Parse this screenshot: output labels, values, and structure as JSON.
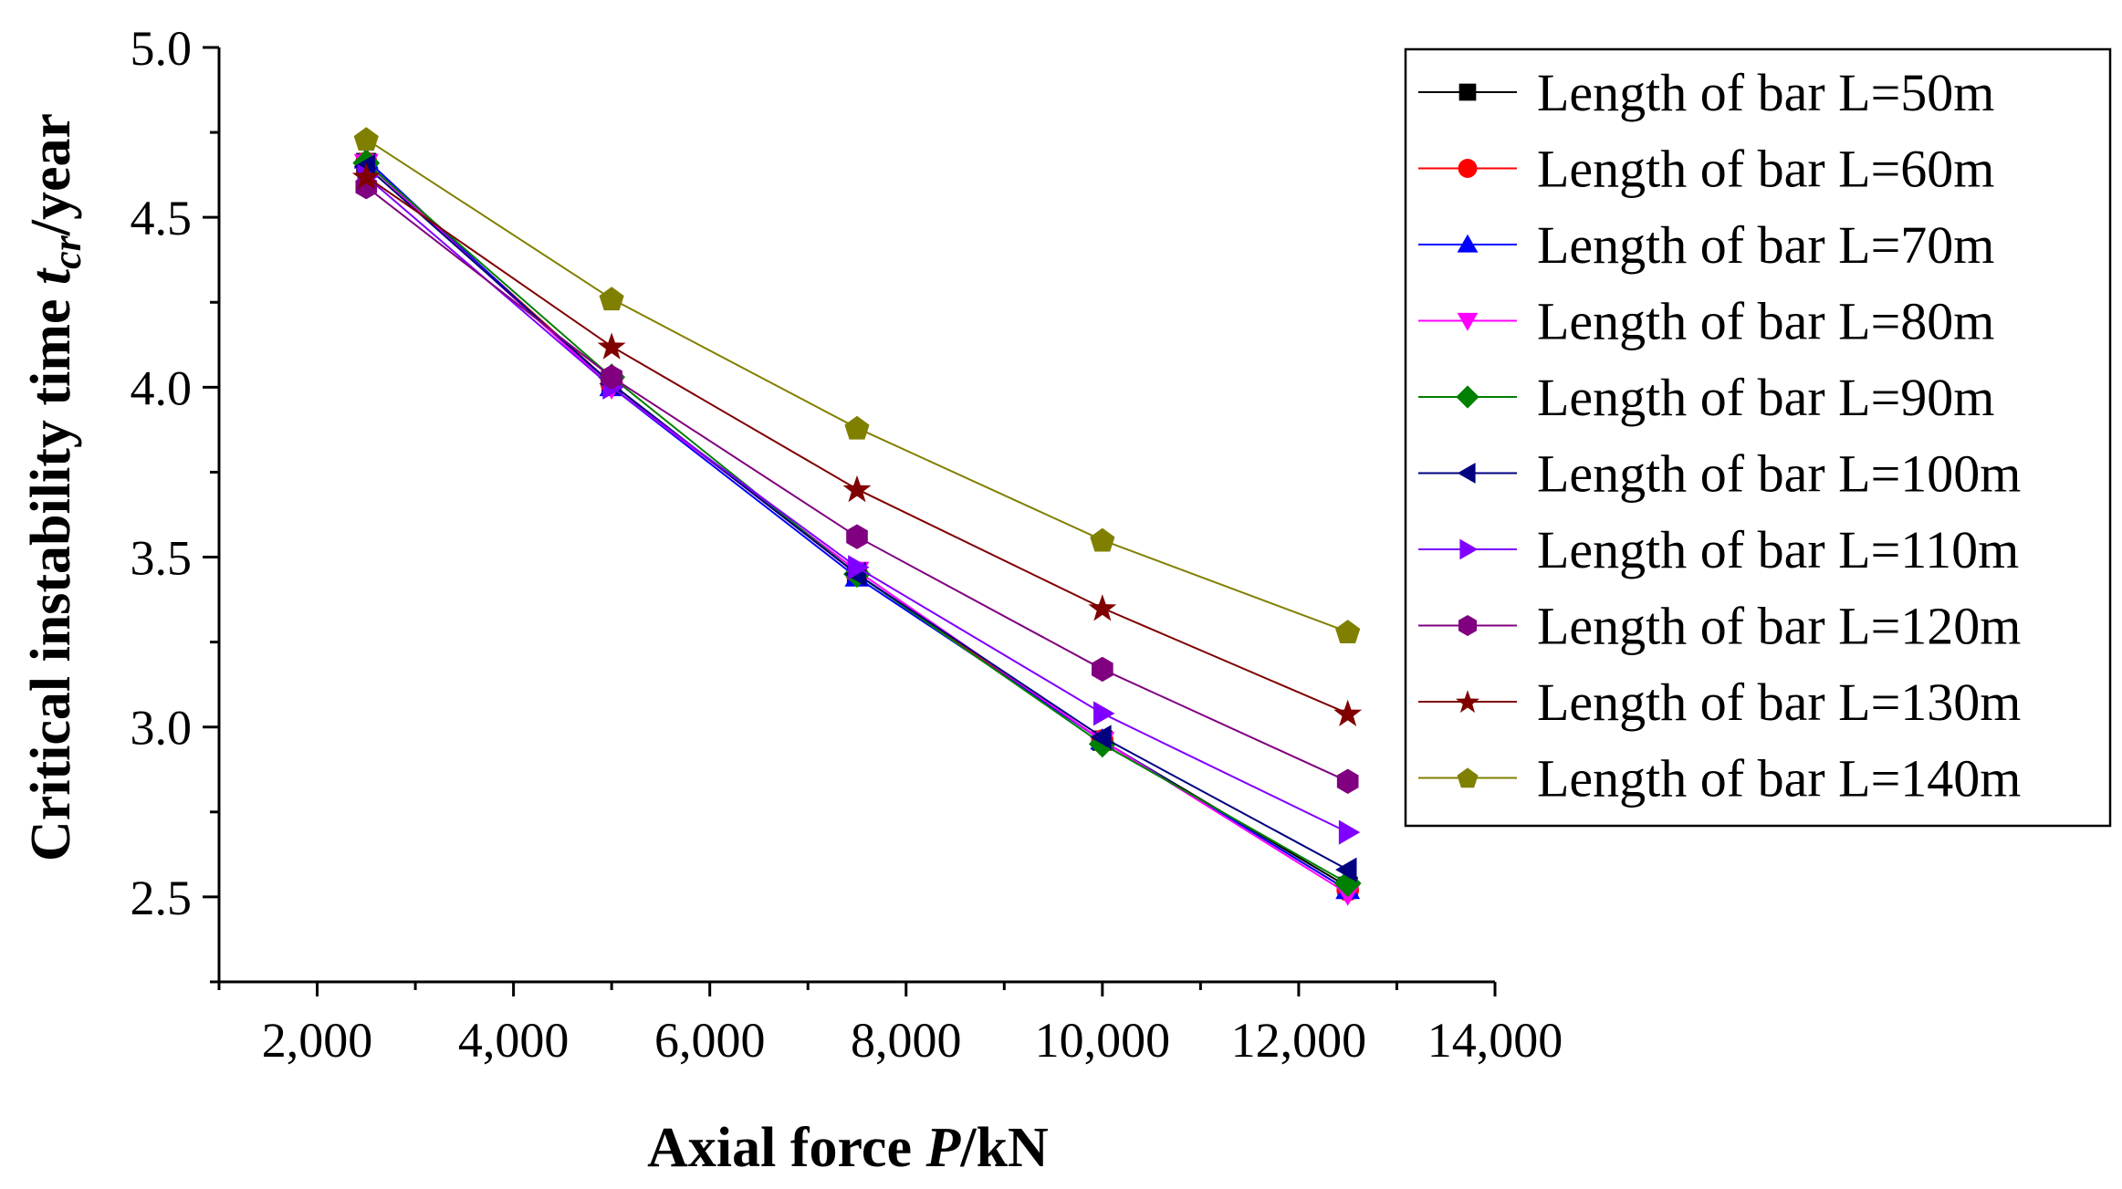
{
  "chart_data": {
    "type": "line",
    "title": "",
    "xlabel": {
      "prefix": "Axial force ",
      "var": "P",
      "suffix": "/kN"
    },
    "ylabel": {
      "prefix": "Critical instability time ",
      "var": "t",
      "sub": "cr",
      "suffix": "/year"
    },
    "xlim": [
      1000,
      14000
    ],
    "ylim": [
      2.25,
      5.0
    ],
    "xticks": [
      2000,
      4000,
      6000,
      8000,
      10000,
      12000,
      14000
    ],
    "xtick_labels": [
      "2,000",
      "4,000",
      "6,000",
      "8,000",
      "10,000",
      "12,000",
      "14,000"
    ],
    "yticks": [
      2.5,
      3.0,
      3.5,
      4.0,
      4.5,
      5.0
    ],
    "ytick_labels": [
      "2.5",
      "3.0",
      "3.5",
      "4.0",
      "4.5",
      "5.0"
    ],
    "x": [
      2500,
      5000,
      7500,
      10000,
      12500
    ],
    "legend_position": "top-right",
    "series": [
      {
        "name": "Length of bar L=50m",
        "color": "#000000",
        "marker": "square",
        "values": [
          4.66,
          4.01,
          3.45,
          2.96,
          2.53
        ]
      },
      {
        "name": "Length of bar L=60m",
        "color": "#ff0000",
        "marker": "circle",
        "values": [
          4.66,
          4.01,
          3.45,
          2.96,
          2.52
        ]
      },
      {
        "name": "Length of bar L=70m",
        "color": "#0000ff",
        "marker": "triangle-up",
        "values": [
          4.67,
          4.0,
          3.44,
          2.96,
          2.52
        ]
      },
      {
        "name": "Length of bar L=80m",
        "color": "#ff00ff",
        "marker": "triangle-down",
        "values": [
          4.66,
          4.0,
          3.46,
          2.96,
          2.51
        ]
      },
      {
        "name": "Length of bar L=90m",
        "color": "#008000",
        "marker": "diamond",
        "values": [
          4.66,
          4.03,
          3.45,
          2.95,
          2.54
        ]
      },
      {
        "name": "Length of bar L=100m",
        "color": "#000080",
        "marker": "triangle-left",
        "values": [
          4.65,
          4.01,
          3.45,
          2.97,
          2.58
        ]
      },
      {
        "name": "Length of bar L=110m",
        "color": "#8000ff",
        "marker": "triangle-right",
        "values": [
          4.62,
          4.0,
          3.47,
          3.04,
          2.69
        ]
      },
      {
        "name": "Length of bar L=120m",
        "color": "#800080",
        "marker": "hexagon",
        "values": [
          4.59,
          4.03,
          3.56,
          3.17,
          2.84
        ]
      },
      {
        "name": "Length of bar L=130m",
        "color": "#800000",
        "marker": "star",
        "values": [
          4.62,
          4.12,
          3.7,
          3.35,
          3.04
        ]
      },
      {
        "name": "Length of bar L=140m",
        "color": "#808000",
        "marker": "pentagon",
        "values": [
          4.73,
          4.26,
          3.88,
          3.55,
          3.28
        ]
      }
    ]
  }
}
